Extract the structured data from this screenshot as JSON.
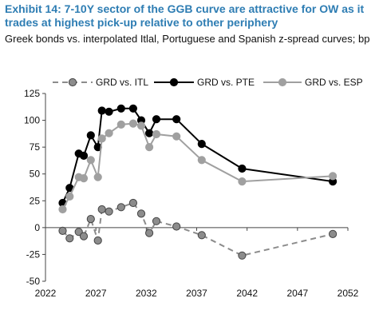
{
  "title": "Exhibit 14: 7-10Y sector of the GGB curve are attractive for OW as it trades at highest pick-up relative to other periphery",
  "subtitle": "Greek bonds vs. interpolated Itlal, Portuguese and Spanish z-spread curves; bp",
  "chart_data": {
    "type": "line",
    "ylim": [
      -50,
      125
    ],
    "yticks": [
      -50,
      -25,
      0,
      25,
      50,
      75,
      100,
      125
    ],
    "xlim": [
      2022,
      2052
    ],
    "xticks": [
      2022,
      2027,
      2032,
      2037,
      2042,
      2047,
      2052
    ],
    "grid": false,
    "legend_position": "top",
    "series": [
      {
        "name": "GRD vs. ITL",
        "color": "#8c8c8c",
        "style": "dashed",
        "points": [
          [
            2023.7,
            -3
          ],
          [
            2024.4,
            -10
          ],
          [
            2025.3,
            -4
          ],
          [
            2025.8,
            -8
          ],
          [
            2026.5,
            8
          ],
          [
            2027.2,
            -12
          ],
          [
            2027.6,
            17
          ],
          [
            2028.3,
            15
          ],
          [
            2029.5,
            19
          ],
          [
            2030.7,
            23
          ],
          [
            2031.5,
            13
          ],
          [
            2032.3,
            -5
          ],
          [
            2033.0,
            6
          ],
          [
            2035.0,
            1
          ],
          [
            2037.5,
            -7
          ],
          [
            2041.5,
            -26
          ],
          [
            2050.5,
            -6
          ]
        ]
      },
      {
        "name": "GRD vs. PTE",
        "color": "#000000",
        "style": "solid",
        "points": [
          [
            2023.7,
            23
          ],
          [
            2024.4,
            37
          ],
          [
            2025.3,
            69
          ],
          [
            2025.8,
            67
          ],
          [
            2026.5,
            86
          ],
          [
            2027.2,
            75
          ],
          [
            2027.6,
            109
          ],
          [
            2028.3,
            108
          ],
          [
            2029.5,
            111
          ],
          [
            2030.7,
            111
          ],
          [
            2031.5,
            100
          ],
          [
            2032.3,
            88
          ],
          [
            2033.0,
            101
          ],
          [
            2035.0,
            101
          ],
          [
            2037.5,
            78
          ],
          [
            2041.5,
            55
          ],
          [
            2050.5,
            43
          ]
        ]
      },
      {
        "name": "GRD vs. ESP",
        "color": "#a0a0a0",
        "style": "solid",
        "points": [
          [
            2023.7,
            17
          ],
          [
            2024.4,
            29
          ],
          [
            2025.3,
            47
          ],
          [
            2025.8,
            46
          ],
          [
            2026.5,
            63
          ],
          [
            2027.2,
            47
          ],
          [
            2027.6,
            83
          ],
          [
            2028.3,
            88
          ],
          [
            2029.5,
            96
          ],
          [
            2030.7,
            97
          ],
          [
            2031.5,
            95
          ],
          [
            2032.3,
            75
          ],
          [
            2033.0,
            87
          ],
          [
            2035.0,
            85
          ],
          [
            2037.5,
            63
          ],
          [
            2041.5,
            43
          ],
          [
            2050.5,
            48
          ]
        ]
      }
    ]
  }
}
